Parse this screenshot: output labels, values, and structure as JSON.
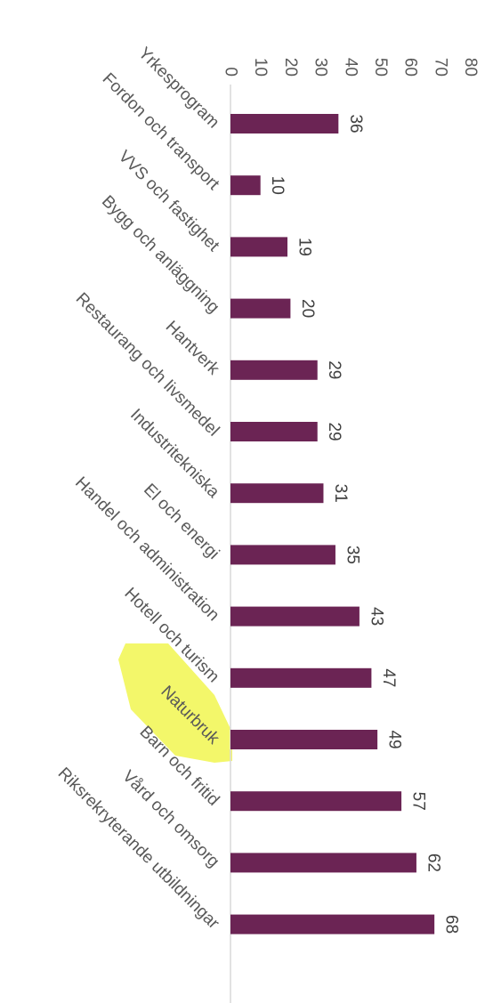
{
  "chart_data": {
    "type": "bar",
    "orientation": "horizontal",
    "categories": [
      "Yrkesprogram",
      "Fordon och transport",
      "VVS och fastighet",
      "Bygg och anläggning",
      "Hantverk",
      "Restaurang och livsmedel",
      "Industritekniska",
      "El och energi",
      "Handel och administration",
      "Hotell och turism",
      "Naturbruk",
      "Barn och fritid",
      "Vård och omsorg",
      "Riksrekryterande utbildningar"
    ],
    "values": [
      36,
      10,
      19,
      20,
      29,
      29,
      31,
      35,
      43,
      47,
      49,
      57,
      62,
      68
    ],
    "value_labels": [
      "36",
      "10",
      "19",
      "20",
      "29",
      "29",
      "31",
      "35",
      "43",
      "47",
      "49",
      "57",
      "62",
      "68"
    ],
    "xlim": [
      0,
      80
    ],
    "ticks": [
      "0",
      "10",
      "20",
      "30",
      "40",
      "50",
      "60",
      "70",
      "80"
    ],
    "bar_color": "#6B2454",
    "axis_color": "#D9D9D9",
    "highlight_category": "Naturbruk",
    "highlight_color": "#F3F76A",
    "grid": false,
    "legend": "none"
  }
}
